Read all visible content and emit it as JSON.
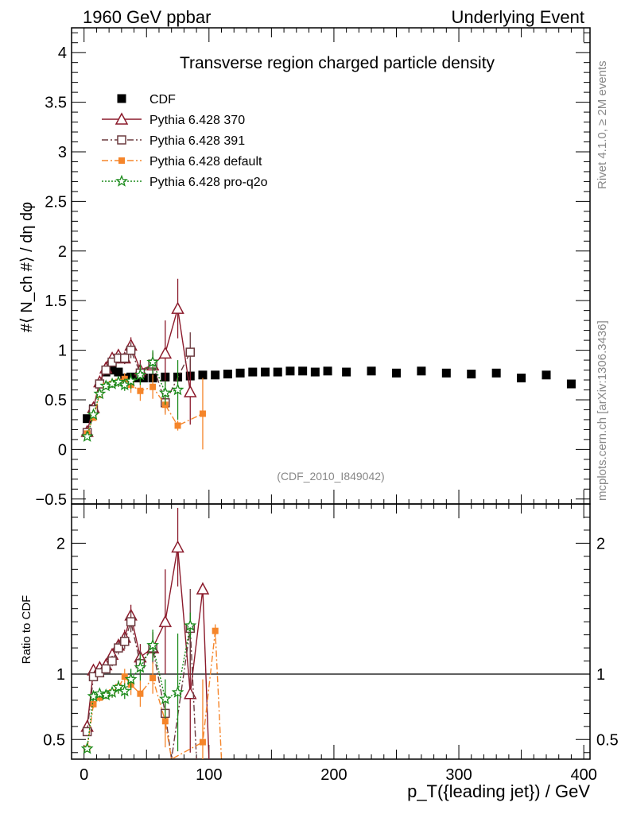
{
  "header": {
    "left": "1960 GeV ppbar",
    "right": "Underlying Event"
  },
  "side_text": {
    "rivet": "Rivet 4.1.0, ≥ 2M events",
    "mcplots": "mcplots.cern.ch [arXiv:1306.3436]"
  },
  "chart_data": {
    "type": "line",
    "title": "Transverse region charged particle density",
    "analysis_id": "(CDF_2010_I849042)",
    "ylabel_main": "#⟨ N_ch #⟩ / dη dφ",
    "ylabel_ratio": "Ratio to CDF",
    "xlabel": "p_T({leading jet}) / GeV",
    "xlim": [
      -10,
      405
    ],
    "ylim_main": [
      -0.55,
      4.25
    ],
    "ylim_ratio": [
      0.35,
      2.3
    ],
    "x_ticks": [
      "0",
      "100",
      "200",
      "300",
      "400"
    ],
    "y_ticks_main": [
      "−0.5",
      "0",
      "0.5",
      "1",
      "1.5",
      "2",
      "2.5",
      "3",
      "3.5",
      "4"
    ],
    "y_ticks_ratio": [
      "0.5",
      "1",
      "2"
    ],
    "legend": [
      {
        "name": "CDF",
        "color": "#000000",
        "marker": "square",
        "line": "none"
      },
      {
        "name": "Pythia 6.428 370",
        "color": "#8b1a2b",
        "marker": "triangle",
        "line": "solid"
      },
      {
        "name": "Pythia 6.428 391",
        "color": "#6b3a3f",
        "marker": "open-square",
        "line": "dashdot"
      },
      {
        "name": "Pythia 6.428 default",
        "color": "#f5852a",
        "marker": "filled-square",
        "line": "dashdot"
      },
      {
        "name": "Pythia 6.428 pro-q2o",
        "color": "#1a8a1a",
        "marker": "star",
        "line": "dotted"
      }
    ],
    "series": [
      {
        "name": "CDF",
        "x": [
          2.5,
          7.5,
          12.5,
          17.5,
          22.5,
          27.5,
          32.5,
          37.5,
          42.5,
          47.5,
          55,
          65,
          75,
          85,
          95,
          105,
          115,
          125,
          135,
          145,
          155,
          165,
          175,
          185,
          195,
          210,
          230,
          250,
          270,
          290,
          310,
          330,
          350,
          370,
          390
        ],
        "y": [
          0.31,
          0.41,
          0.66,
          0.78,
          0.8,
          0.78,
          0.72,
          0.73,
          0.72,
          0.72,
          0.72,
          0.73,
          0.73,
          0.74,
          0.75,
          0.75,
          0.76,
          0.77,
          0.78,
          0.78,
          0.78,
          0.79,
          0.79,
          0.78,
          0.79,
          0.78,
          0.79,
          0.77,
          0.79,
          0.77,
          0.76,
          0.77,
          0.72,
          0.75,
          0.66
        ],
        "yerr": [
          0.01,
          0.01,
          0.01,
          0.01,
          0.01,
          0.01,
          0.01,
          0.01,
          0.01,
          0.01,
          0.01,
          0.01,
          0.01,
          0.01,
          0.01,
          0.01,
          0.01,
          0.01,
          0.01,
          0.01,
          0.01,
          0.01,
          0.01,
          0.01,
          0.01,
          0.01,
          0.01,
          0.01,
          0.01,
          0.01,
          0.01,
          0.01,
          0.01,
          0.01,
          0.01
        ]
      },
      {
        "name": "Pythia 6.428 370",
        "x": [
          2.5,
          7.5,
          12.5,
          17.5,
          22.5,
          27.5,
          32.5,
          37.5,
          45,
          55,
          65,
          75,
          85
        ],
        "y": [
          0.18,
          0.42,
          0.68,
          0.82,
          0.92,
          0.95,
          0.92,
          1.05,
          0.8,
          0.85,
          0.97,
          1.42,
          0.58
        ],
        "yerr": [
          0.02,
          0.02,
          0.02,
          0.03,
          0.04,
          0.05,
          0.06,
          0.08,
          0.1,
          0.12,
          0.33,
          0.3,
          0.33
        ]
      },
      {
        "name": "Pythia 6.428 391",
        "x": [
          2.5,
          7.5,
          12.5,
          17.5,
          22.5,
          27.5,
          32.5,
          37.5,
          45,
          55,
          65,
          85
        ],
        "y": [
          0.17,
          0.4,
          0.66,
          0.8,
          0.88,
          0.92,
          0.92,
          1.0,
          0.77,
          0.86,
          0.47,
          0.98
        ],
        "yerr": [
          0.02,
          0.02,
          0.02,
          0.03,
          0.04,
          0.05,
          0.06,
          0.08,
          0.1,
          0.12,
          0.1,
          0.2
        ]
      },
      {
        "name": "Pythia 6.428 default",
        "x": [
          2.5,
          7.5,
          12.5,
          17.5,
          22.5,
          27.5,
          32.5,
          37.5,
          45,
          55,
          65,
          75,
          95
        ],
        "y": [
          0.16,
          0.32,
          0.55,
          0.64,
          0.66,
          0.68,
          0.71,
          0.65,
          0.59,
          0.63,
          0.45,
          0.24,
          0.36
        ],
        "yerr": [
          0.02,
          0.02,
          0.02,
          0.03,
          0.04,
          0.05,
          0.06,
          0.08,
          0.1,
          0.12,
          0.1,
          0.05,
          0.36
        ]
      },
      {
        "name": "Pythia 6.428 pro-q2o",
        "x": [
          2.5,
          7.5,
          12.5,
          17.5,
          22.5,
          27.5,
          32.5,
          37.5,
          45,
          55,
          65,
          75
        ],
        "y": [
          0.13,
          0.35,
          0.56,
          0.64,
          0.66,
          0.68,
          0.65,
          0.69,
          0.75,
          0.88,
          0.57,
          0.6
        ],
        "yerr": [
          0.02,
          0.02,
          0.02,
          0.03,
          0.04,
          0.05,
          0.06,
          0.08,
          0.1,
          0.12,
          0.12,
          0.3
        ]
      }
    ],
    "ratio_series": [
      {
        "name": "Pythia 6.428 370",
        "x": [
          2.5,
          7.5,
          12.5,
          17.5,
          22.5,
          27.5,
          32.5,
          37.5,
          45,
          55,
          65,
          75,
          85,
          95,
          100
        ],
        "y": [
          0.6,
          1.03,
          1.05,
          1.07,
          1.15,
          1.22,
          1.28,
          1.45,
          1.13,
          1.2,
          1.4,
          1.97,
          0.85,
          1.65,
          0.3
        ],
        "yerr": [
          0.02,
          0.03,
          0.03,
          0.03,
          0.04,
          0.05,
          0.06,
          0.08,
          0.1,
          0.12,
          0.4,
          0.3,
          0.45,
          0.05,
          0.0
        ]
      },
      {
        "name": "Pythia 6.428 391",
        "x": [
          2.5,
          7.5,
          12.5,
          17.5,
          22.5,
          27.5,
          32.5,
          37.5,
          45,
          55,
          65,
          70,
          85,
          90
        ],
        "y": [
          0.56,
          0.98,
          1.01,
          1.04,
          1.1,
          1.2,
          1.25,
          1.4,
          1.08,
          1.2,
          0.7,
          0.3,
          1.35,
          0.3
        ],
        "yerr": [
          0.02,
          0.03,
          0.03,
          0.03,
          0.04,
          0.05,
          0.06,
          0.08,
          0.1,
          0.12,
          0.15,
          0.0,
          0.3,
          0.0
        ]
      },
      {
        "name": "Pythia 6.428 default",
        "x": [
          2.5,
          7.5,
          12.5,
          17.5,
          22.5,
          27.5,
          32.5,
          37.5,
          45,
          55,
          65,
          70,
          95,
          105,
          110
        ],
        "y": [
          0.43,
          0.77,
          0.82,
          0.84,
          0.86,
          0.9,
          0.98,
          0.92,
          0.85,
          0.97,
          0.64,
          0.3,
          0.48,
          1.33,
          0.3
        ],
        "yerr": [
          0.02,
          0.03,
          0.03,
          0.03,
          0.04,
          0.05,
          0.06,
          0.08,
          0.1,
          0.12,
          0.2,
          0.0,
          0.48,
          0.05,
          0.0
        ]
      },
      {
        "name": "Pythia 6.428 pro-q2o",
        "x": [
          2.5,
          7.5,
          12.5,
          17.5,
          22.5,
          27.5,
          32.5,
          37.5,
          45,
          55,
          65,
          75,
          85
        ],
        "y": [
          0.43,
          0.83,
          0.85,
          0.84,
          0.86,
          0.9,
          0.87,
          0.96,
          1.05,
          1.22,
          0.81,
          0.86,
          1.37
        ],
        "yerr": [
          0.02,
          0.03,
          0.03,
          0.03,
          0.04,
          0.05,
          0.06,
          0.08,
          0.1,
          0.12,
          0.15,
          0.45,
          0.1
        ]
      }
    ]
  }
}
